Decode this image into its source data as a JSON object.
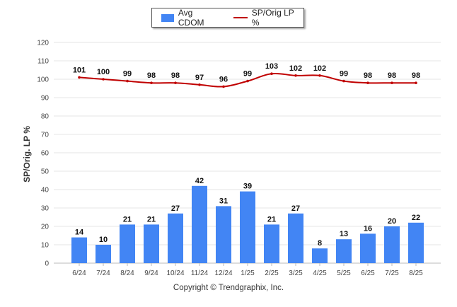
{
  "legend": {
    "bar_label": "Avg CDOM",
    "line_label": "SP/Orig LP %"
  },
  "colors": {
    "bar": "#4285f4",
    "line": "#c00000",
    "grid": "#e6e6e6"
  },
  "credit": "Copyright © Trendgraphix, Inc.",
  "chart_data": {
    "type": "bar",
    "ylabel": "SP/Orig. LP %",
    "xlabel": "",
    "ylim": [
      0,
      120
    ],
    "yticks": [
      0,
      10,
      20,
      30,
      40,
      50,
      60,
      70,
      80,
      90,
      100,
      110,
      120
    ],
    "grid": true,
    "legend_position": "top-center",
    "categories": [
      "6/24",
      "7/24",
      "8/24",
      "9/24",
      "10/24",
      "11/24",
      "12/24",
      "1/25",
      "2/25",
      "3/25",
      "4/25",
      "5/25",
      "6/25",
      "7/25",
      "8/25"
    ],
    "series": [
      {
        "name": "Avg CDOM",
        "type": "bar",
        "values": [
          14,
          10,
          21,
          21,
          27,
          42,
          31,
          39,
          21,
          27,
          8,
          13,
          16,
          20,
          22
        ]
      },
      {
        "name": "SP/Orig LP %",
        "type": "line",
        "values": [
          101,
          100,
          99,
          98,
          98,
          97,
          96,
          99,
          103,
          102,
          102,
          99,
          98,
          98,
          98
        ]
      }
    ]
  }
}
